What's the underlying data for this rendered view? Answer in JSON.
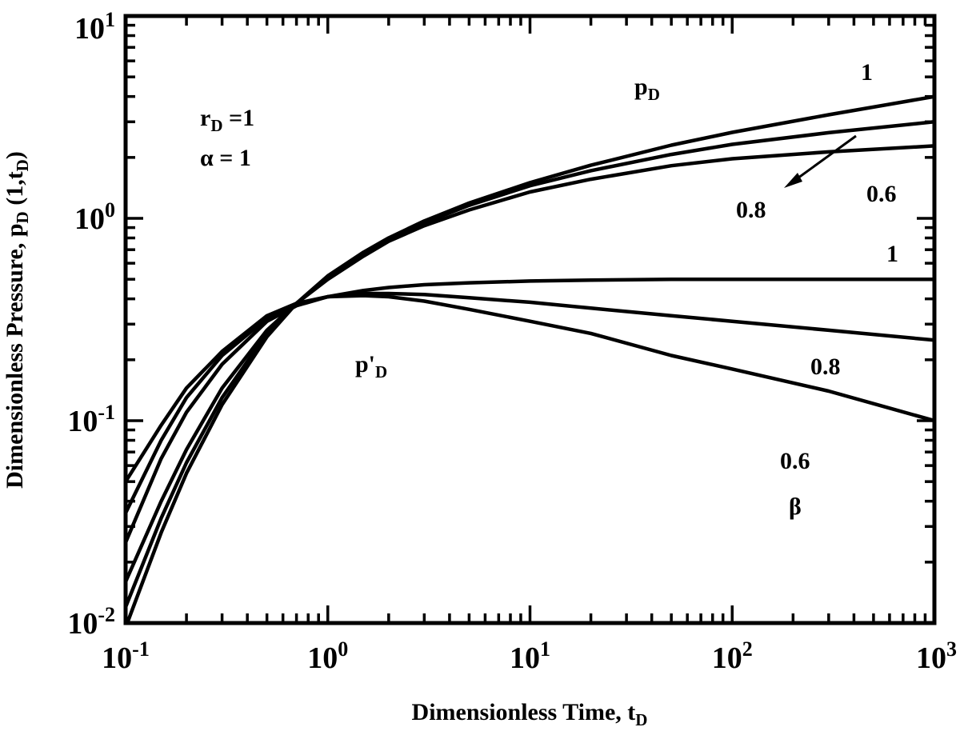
{
  "chart_data": {
    "type": "line",
    "xscale": "log",
    "yscale": "log",
    "xlim": [
      0.1,
      1000
    ],
    "ylim": [
      0.01,
      10
    ],
    "grid": false,
    "legend": "none",
    "xlabel": {
      "main": "Dimensionless Time, t",
      "sub": "D"
    },
    "ylabel": {
      "main": "Dimensionless Pressure, p",
      "sub": "D",
      "tail": " (1,t",
      "sub2": "D",
      "end": ")"
    },
    "x_ticks": [
      {
        "base": "10",
        "exp": "-1",
        "value": 0.1
      },
      {
        "base": "10",
        "exp": "0",
        "value": 1
      },
      {
        "base": "10",
        "exp": "1",
        "value": 10
      },
      {
        "base": "10",
        "exp": "2",
        "value": 100
      },
      {
        "base": "10",
        "exp": "3",
        "value": 1000
      }
    ],
    "y_ticks": [
      {
        "base": "10",
        "exp": "-2",
        "value": 0.01
      },
      {
        "base": "10",
        "exp": "-1",
        "value": 0.1
      },
      {
        "base": "10",
        "exp": "0",
        "value": 1
      },
      {
        "base": "10",
        "exp": "1",
        "value": 10
      }
    ],
    "series": [
      {
        "group": "pD",
        "beta": "1",
        "x": [
          0.1,
          0.15,
          0.2,
          0.3,
          0.5,
          0.7,
          1,
          1.5,
          2,
          3,
          5,
          10,
          20,
          50,
          100,
          300,
          1000
        ],
        "y": [
          0.0095,
          0.028,
          0.055,
          0.12,
          0.26,
          0.38,
          0.52,
          0.68,
          0.8,
          0.97,
          1.19,
          1.5,
          1.83,
          2.3,
          2.66,
          3.25,
          4.0
        ]
      },
      {
        "group": "pD",
        "beta": "0.8",
        "x": [
          0.1,
          0.15,
          0.2,
          0.3,
          0.5,
          0.7,
          1,
          1.5,
          2,
          3,
          5,
          10,
          20,
          50,
          100,
          300,
          1000
        ],
        "y": [
          0.012,
          0.033,
          0.062,
          0.13,
          0.27,
          0.38,
          0.51,
          0.67,
          0.79,
          0.95,
          1.16,
          1.45,
          1.72,
          2.07,
          2.32,
          2.65,
          3.0
        ]
      },
      {
        "group": "pD",
        "beta": "0.6",
        "x": [
          0.1,
          0.15,
          0.2,
          0.3,
          0.5,
          0.7,
          1,
          1.5,
          2,
          3,
          5,
          10,
          20,
          50,
          100,
          300,
          1000
        ],
        "y": [
          0.016,
          0.04,
          0.072,
          0.145,
          0.28,
          0.38,
          0.5,
          0.65,
          0.77,
          0.92,
          1.1,
          1.35,
          1.56,
          1.82,
          1.97,
          2.13,
          2.28
        ]
      },
      {
        "group": "p'D",
        "beta": "1",
        "x": [
          0.1,
          0.15,
          0.2,
          0.3,
          0.5,
          0.7,
          1,
          1.5,
          2,
          3,
          5,
          10,
          20,
          50,
          100,
          300,
          1000
        ],
        "y": [
          0.025,
          0.065,
          0.11,
          0.19,
          0.31,
          0.37,
          0.41,
          0.44,
          0.455,
          0.47,
          0.48,
          0.49,
          0.495,
          0.5,
          0.5,
          0.5,
          0.5
        ]
      },
      {
        "group": "p'D",
        "beta": "0.8",
        "x": [
          0.1,
          0.15,
          0.2,
          0.3,
          0.5,
          0.7,
          1,
          1.5,
          2,
          3,
          5,
          10,
          20,
          50,
          100,
          300,
          1000
        ],
        "y": [
          0.035,
          0.08,
          0.13,
          0.21,
          0.32,
          0.375,
          0.41,
          0.425,
          0.425,
          0.42,
          0.405,
          0.385,
          0.36,
          0.33,
          0.31,
          0.28,
          0.25
        ]
      },
      {
        "group": "p'D",
        "beta": "0.6",
        "x": [
          0.1,
          0.15,
          0.2,
          0.3,
          0.5,
          0.7,
          1,
          1.5,
          2,
          3,
          5,
          10,
          20,
          50,
          100,
          300,
          1000
        ],
        "y": [
          0.05,
          0.095,
          0.145,
          0.22,
          0.33,
          0.38,
          0.41,
          0.415,
          0.41,
          0.39,
          0.355,
          0.31,
          0.27,
          0.21,
          0.18,
          0.14,
          0.1
        ]
      }
    ],
    "annotations": {
      "pd_label": {
        "main": "p",
        "sub": "D"
      },
      "pdp_label": {
        "main": "p'",
        "sub": "D"
      },
      "params_rd": {
        "main": "r",
        "sub": "D",
        "tail": " =1"
      },
      "params_alpha": "α = 1",
      "pd_beta_1": "1",
      "pd_beta_08": "0.8",
      "pd_beta_06": "0.6",
      "pdp_beta_1": "1",
      "pdp_beta_08": "0.8",
      "pdp_beta_06": "0.6",
      "beta_symbol": "β"
    }
  }
}
